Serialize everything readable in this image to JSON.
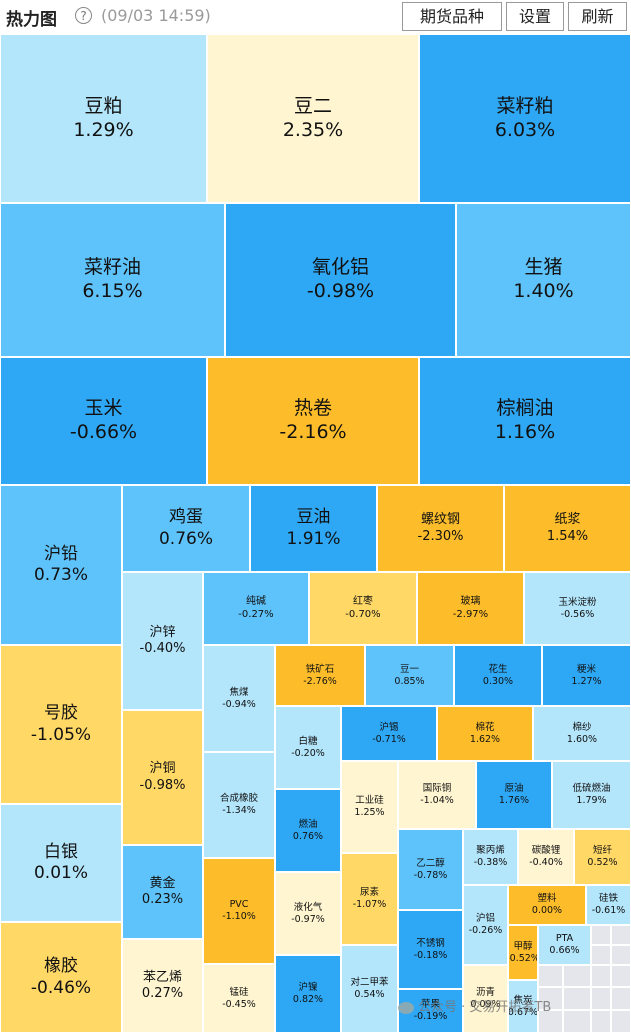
{
  "header": {
    "title": "热力图",
    "timestamp": "(09/03 14:59)",
    "buttons": {
      "varieties": "期货品种",
      "settings": "设置",
      "refresh": "刷新"
    }
  },
  "colors": {
    "up_light": "#b3e5fb",
    "up_mid": "#5fc3fb",
    "up_deep": "#2ea8f5",
    "down_light": "#fff5d1",
    "down_mid": "#ffd866",
    "down_deep": "#fdbd2b",
    "empty": "#e5e5ec"
  },
  "tiles": [
    {
      "name": "豆粕",
      "change": "1.29%",
      "color": "up_light"
    },
    {
      "name": "豆二",
      "change": "2.35%",
      "color": "down_light"
    },
    {
      "name": "菜籽粕",
      "change": "6.03%",
      "color": "up_deep"
    },
    {
      "name": "菜籽油",
      "change": "6.15%",
      "color": "up_mid"
    },
    {
      "name": "氧化铝",
      "change": "-0.98%",
      "color": "up_deep"
    },
    {
      "name": "生猪",
      "change": "1.40%",
      "color": "up_mid"
    },
    {
      "name": "玉米",
      "change": "-0.66%",
      "color": "up_deep"
    },
    {
      "name": "热卷",
      "change": "-2.16%",
      "color": "down_deep"
    },
    {
      "name": "棕榈油",
      "change": "1.16%",
      "color": "up_deep"
    },
    {
      "name": "沪铅",
      "change": "0.73%",
      "color": "up_mid"
    },
    {
      "name": "鸡蛋",
      "change": "0.76%",
      "color": "up_mid"
    },
    {
      "name": "豆油",
      "change": "1.91%",
      "color": "up_deep"
    },
    {
      "name": "螺纹钢",
      "change": "-2.30%",
      "color": "down_deep"
    },
    {
      "name": "纸浆",
      "change": "1.54%",
      "color": "down_deep"
    },
    {
      "name": "沪锌",
      "change": "-0.40%",
      "color": "up_light"
    },
    {
      "name": "纯碱",
      "change": "-0.27%",
      "color": "up_mid"
    },
    {
      "name": "红枣",
      "change": "-0.70%",
      "color": "down_mid"
    },
    {
      "name": "玻璃",
      "change": "-2.97%",
      "color": "down_deep"
    },
    {
      "name": "玉米淀粉",
      "change": "-0.56%",
      "color": "up_light"
    },
    {
      "name": "号胶",
      "change": "-1.05%",
      "color": "down_mid"
    },
    {
      "name": "焦煤",
      "change": "-0.94%",
      "color": "up_light"
    },
    {
      "name": "铁矿石",
      "change": "-2.76%",
      "color": "down_deep"
    },
    {
      "name": "豆一",
      "change": "0.85%",
      "color": "up_mid"
    },
    {
      "name": "花生",
      "change": "0.30%",
      "color": "up_deep"
    },
    {
      "name": "粳米",
      "change": "1.27%",
      "color": "up_deep"
    },
    {
      "name": "沪铜",
      "change": "-0.98%",
      "color": "down_mid"
    },
    {
      "name": "白糖",
      "change": "-0.20%",
      "color": "up_light"
    },
    {
      "name": "沪锡",
      "change": "-0.71%",
      "color": "up_deep"
    },
    {
      "name": "棉花",
      "change": "1.62%",
      "color": "down_deep"
    },
    {
      "name": "棉纱",
      "change": "1.60%",
      "color": "up_light"
    },
    {
      "name": "合成橡胶",
      "change": "-1.34%",
      "color": "up_light"
    },
    {
      "name": "工业硅",
      "change": "1.25%",
      "color": "down_light"
    },
    {
      "name": "国际铜",
      "change": "-1.04%",
      "color": "down_light"
    },
    {
      "name": "原油",
      "change": "1.76%",
      "color": "up_deep"
    },
    {
      "name": "低硫燃油",
      "change": "1.79%",
      "color": "up_light"
    },
    {
      "name": "白银",
      "change": "0.01%",
      "color": "up_light"
    },
    {
      "name": "燃油",
      "change": "0.76%",
      "color": "up_deep"
    },
    {
      "name": "乙二醇",
      "change": "-0.78%",
      "color": "up_mid"
    },
    {
      "name": "聚丙烯",
      "change": "-0.38%",
      "color": "up_light"
    },
    {
      "name": "碳酸锂",
      "change": "-0.40%",
      "color": "down_light"
    },
    {
      "name": "短纤",
      "change": "0.52%",
      "color": "down_mid"
    },
    {
      "name": "黄金",
      "change": "0.23%",
      "color": "up_mid"
    },
    {
      "name": "PVC",
      "change": "-1.10%",
      "color": "down_deep"
    },
    {
      "name": "液化气",
      "change": "-0.97%",
      "color": "down_light"
    },
    {
      "name": "尿素",
      "change": "-1.07%",
      "color": "down_mid"
    },
    {
      "name": "塑料",
      "change": "0.00%",
      "color": "down_deep"
    },
    {
      "name": "硅铁",
      "change": "-0.61%",
      "color": "up_light"
    },
    {
      "name": "不锈钢",
      "change": "-0.18%",
      "color": "up_deep"
    },
    {
      "name": "沪铝",
      "change": "-0.26%",
      "color": "up_light"
    },
    {
      "name": "甲醇",
      "change": "-0.52%",
      "color": "down_deep"
    },
    {
      "name": "PTA",
      "change": "0.66%",
      "color": "up_light"
    },
    {
      "name": "橡胶",
      "change": "-0.46%",
      "color": "down_mid"
    },
    {
      "name": "苯乙烯",
      "change": "0.27%",
      "color": "down_light"
    },
    {
      "name": "锰硅",
      "change": "-0.45%",
      "color": "down_light"
    },
    {
      "name": "沪镍",
      "change": "0.82%",
      "color": "up_deep"
    },
    {
      "name": "对二甲苯",
      "change": "0.54%",
      "color": "up_light"
    },
    {
      "name": "苹果",
      "change": "-0.19%",
      "color": "up_deep"
    },
    {
      "name": "沥青",
      "change": "0.09%",
      "color": "down_light"
    },
    {
      "name": "焦炭",
      "change": "0.67%",
      "color": "up_light"
    }
  ],
  "watermark": "公众号 · 交易开拓者TB"
}
